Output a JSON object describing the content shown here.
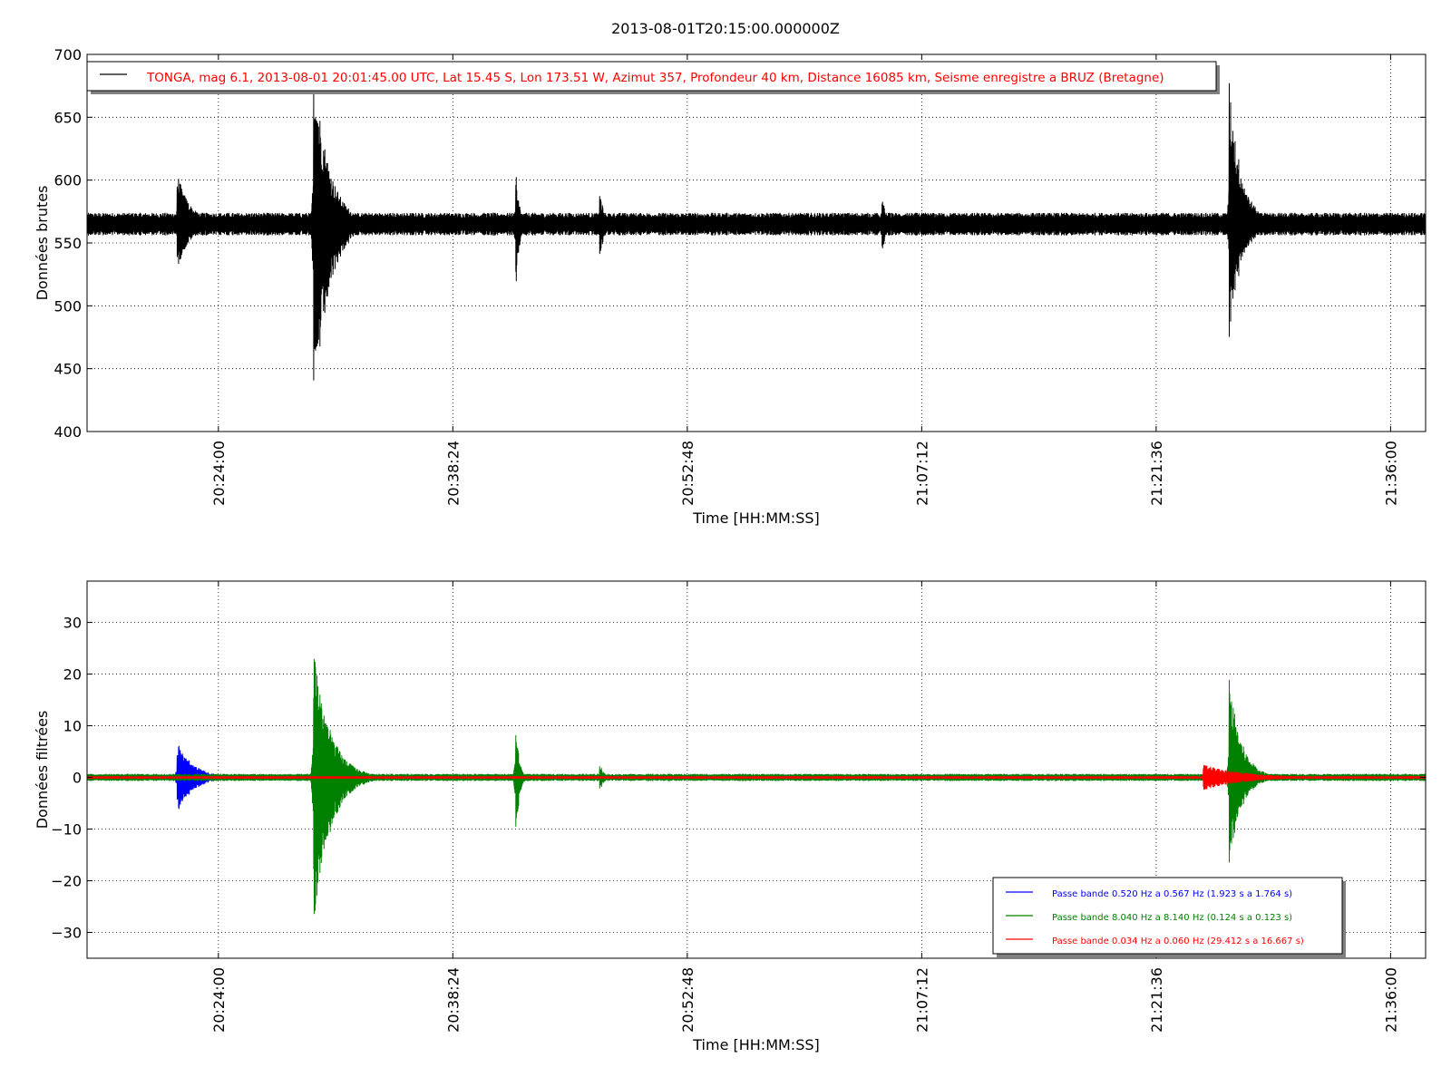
{
  "title": "2013-08-01T20:15:00.000000Z",
  "colors": {
    "raw": "#000000",
    "blue": "#0000ff",
    "green": "#008000",
    "red": "#ff0000",
    "grid": "#000000"
  },
  "chart_data": [
    {
      "type": "line",
      "name": "raw",
      "xlabel": "Time [HH:MM:SS]",
      "ylabel": "Données brutes",
      "xlim": [
        "20:15:56",
        "21:38:09"
      ],
      "ylim": [
        400,
        700
      ],
      "yticks": [
        400,
        450,
        500,
        550,
        600,
        650,
        700
      ],
      "xticks": [
        "20:24:00",
        "20:38:24",
        "20:52:48",
        "21:07:12",
        "21:21:36",
        "21:36:00"
      ],
      "grid": true,
      "legend_position": "top-left",
      "baseline": 565,
      "noise": 9,
      "series": [
        {
          "label": "TONGA, mag 6.1, 2013-08-01 20:01:45.00 UTC, Lat 15.45 S, Lon 173.51 W, Azimut 357, Profondeur 40 km, Distance 16085 km, Seisme enregistre a BRUZ (Bretagne)",
          "color": "#000000",
          "events": [
            {
              "time": "20:21:28",
              "peak_max": 606,
              "peak_min": 529,
              "decay_s": 50
            },
            {
              "time": "20:29:50",
              "peak_max": 700,
              "peak_min": 405,
              "decay_s": 55
            },
            {
              "time": "20:42:15",
              "peak_max": 620,
              "peak_min": 498,
              "decay_s": 12
            },
            {
              "time": "20:47:25",
              "peak_max": 595,
              "peak_min": 533,
              "decay_s": 15
            },
            {
              "time": "21:04:45",
              "peak_max": 590,
              "peak_min": 538,
              "decay_s": 15
            },
            {
              "time": "21:26:05",
              "peak_max": 680,
              "peak_min": 473,
              "decay_s": 45
            }
          ]
        }
      ]
    },
    {
      "type": "line",
      "name": "filtered",
      "xlabel": "Time [HH:MM:SS]",
      "ylabel": "Données filtrées",
      "xlim": [
        "20:15:56",
        "21:38:09"
      ],
      "ylim": [
        -35,
        38
      ],
      "yticks": [
        -30,
        -20,
        -10,
        0,
        10,
        20,
        30
      ],
      "ytick_labels": [
        "−30",
        "−20",
        "−10",
        "0",
        "10",
        "20",
        "30"
      ],
      "xticks": [
        "20:24:00",
        "20:38:24",
        "20:52:48",
        "21:07:12",
        "21:21:36",
        "21:36:00"
      ],
      "grid": true,
      "legend_position": "bottom-right",
      "series": [
        {
          "label": "Passe bande 0.520 Hz a 0.567 Hz (1.923 s a 1.764 s)",
          "color": "#0000ff",
          "noise": 0.5,
          "events": [
            {
              "time": "20:21:28",
              "peak_max": 7,
              "peak_min": -7,
              "decay_s": 60
            }
          ]
        },
        {
          "label": "Passe bande 8.040 Hz a 8.140 Hz (0.124 s a 0.123 s)",
          "color": "#008000",
          "noise": 0.7,
          "events": [
            {
              "time": "20:29:50",
              "peak_max": 26,
              "peak_min": -30,
              "decay_s": 60
            },
            {
              "time": "20:42:15",
              "peak_max": 12,
              "peak_min": -14,
              "decay_s": 12
            },
            {
              "time": "20:47:25",
              "peak_max": 3,
              "peak_min": -3,
              "decay_s": 15
            },
            {
              "time": "21:26:05",
              "peak_max": 19.5,
              "peak_min": -17,
              "decay_s": 45
            }
          ]
        },
        {
          "label": "Passe bande 0.034 Hz a 0.060 Hz (29.412 s a 16.667 s)",
          "color": "#ff0000",
          "noise": 0.25,
          "events": [
            {
              "time": "21:24:30",
              "peak_max": 2.5,
              "peak_min": -2.5,
              "decay_s": 150
            }
          ]
        }
      ]
    }
  ]
}
